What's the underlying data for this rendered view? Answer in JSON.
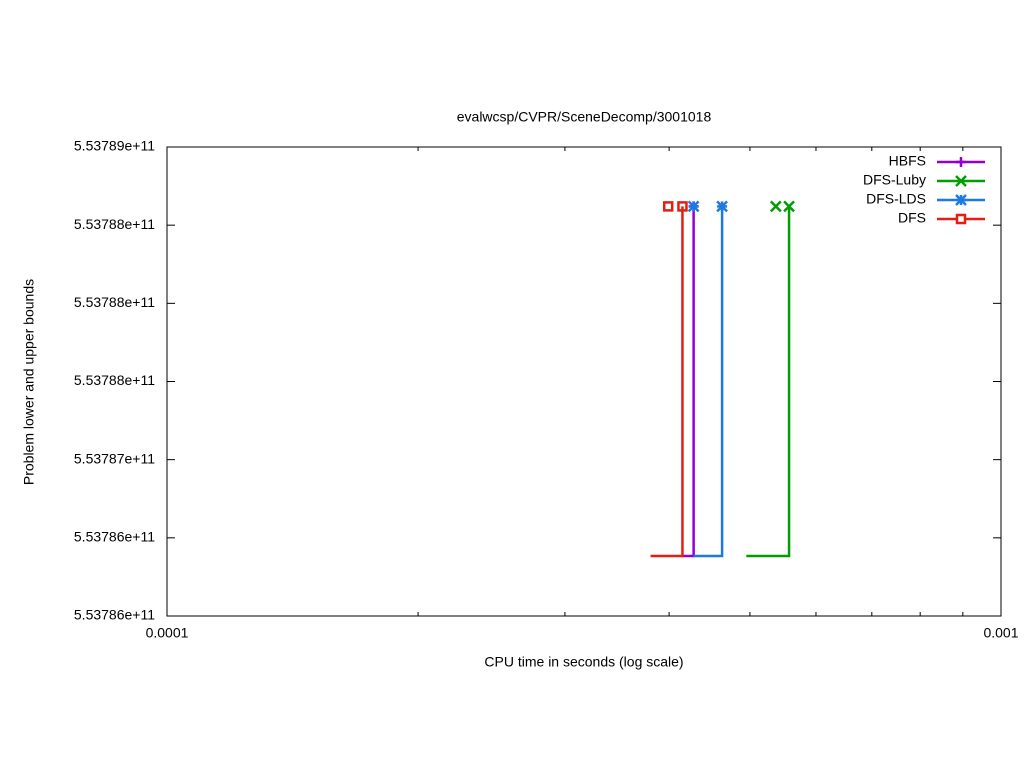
{
  "chart_data": {
    "type": "line",
    "title": "evalwcsp/CVPR/SceneDecomp/3001018",
    "x_label": "CPU time in seconds (log scale)",
    "y_label": "Problem lower and upper bounds",
    "xscale": "log",
    "xlim": [
      0.0001,
      0.001
    ],
    "xticks": [
      0.0001,
      0.001
    ],
    "minor_xticks": [
      0.0002,
      0.0003,
      0.0004,
      0.0005,
      0.0006,
      0.0007,
      0.0008,
      0.0009
    ],
    "ylim": [
      553786000000,
      553789000000
    ],
    "yticks": [
      {
        "value": 553786000000,
        "label": "5.53786e+11"
      },
      {
        "value": 553786500000,
        "label": "5.53786e+11"
      },
      {
        "value": 553787000000,
        "label": "5.53787e+11"
      },
      {
        "value": 553787500000,
        "label": "5.53788e+11"
      },
      {
        "value": 553788000000,
        "label": "5.53788e+11"
      },
      {
        "value": 553788500000,
        "label": "5.53788e+11"
      },
      {
        "value": 553789000000,
        "label": "5.53789e+11"
      }
    ],
    "legend": "top-right",
    "series": [
      {
        "name": "HBFS",
        "color": "#9400d3",
        "marker": "plus",
        "x": [
          0.000415,
          0.000428,
          0.000428
        ],
        "values": [
          553786384000,
          553786384000,
          553788620000
        ],
        "marker_x": [
          0.000428
        ],
        "marker_values": [
          553788620000
        ]
      },
      {
        "name": "DFS-Luby",
        "color": "#009e00",
        "marker": "cross",
        "x": [
          0.000495,
          0.000557,
          0.000557
        ],
        "values": [
          553786384000,
          553786384000,
          553788620000
        ],
        "marker_x": [
          0.000537,
          0.000557
        ],
        "marker_values": [
          553788620000,
          553788620000
        ]
      },
      {
        "name": "DFS-LDS",
        "color": "#1e78e6",
        "marker": "star",
        "x": [
          0.000428,
          0.000463,
          0.000463
        ],
        "values": [
          553786384000,
          553786384000,
          553788620000
        ],
        "marker_x": [
          0.000428,
          0.000463
        ],
        "marker_values": [
          553788620000,
          553788620000
        ]
      },
      {
        "name": "DFS",
        "color": "#e51e10",
        "marker": "square",
        "x": [
          0.00038,
          0.000415,
          0.000415
        ],
        "values": [
          553786384000,
          553786384000,
          553788620000
        ],
        "marker_x": [
          0.000399,
          0.000415
        ],
        "marker_values": [
          553788620000,
          553788620000
        ]
      }
    ]
  }
}
